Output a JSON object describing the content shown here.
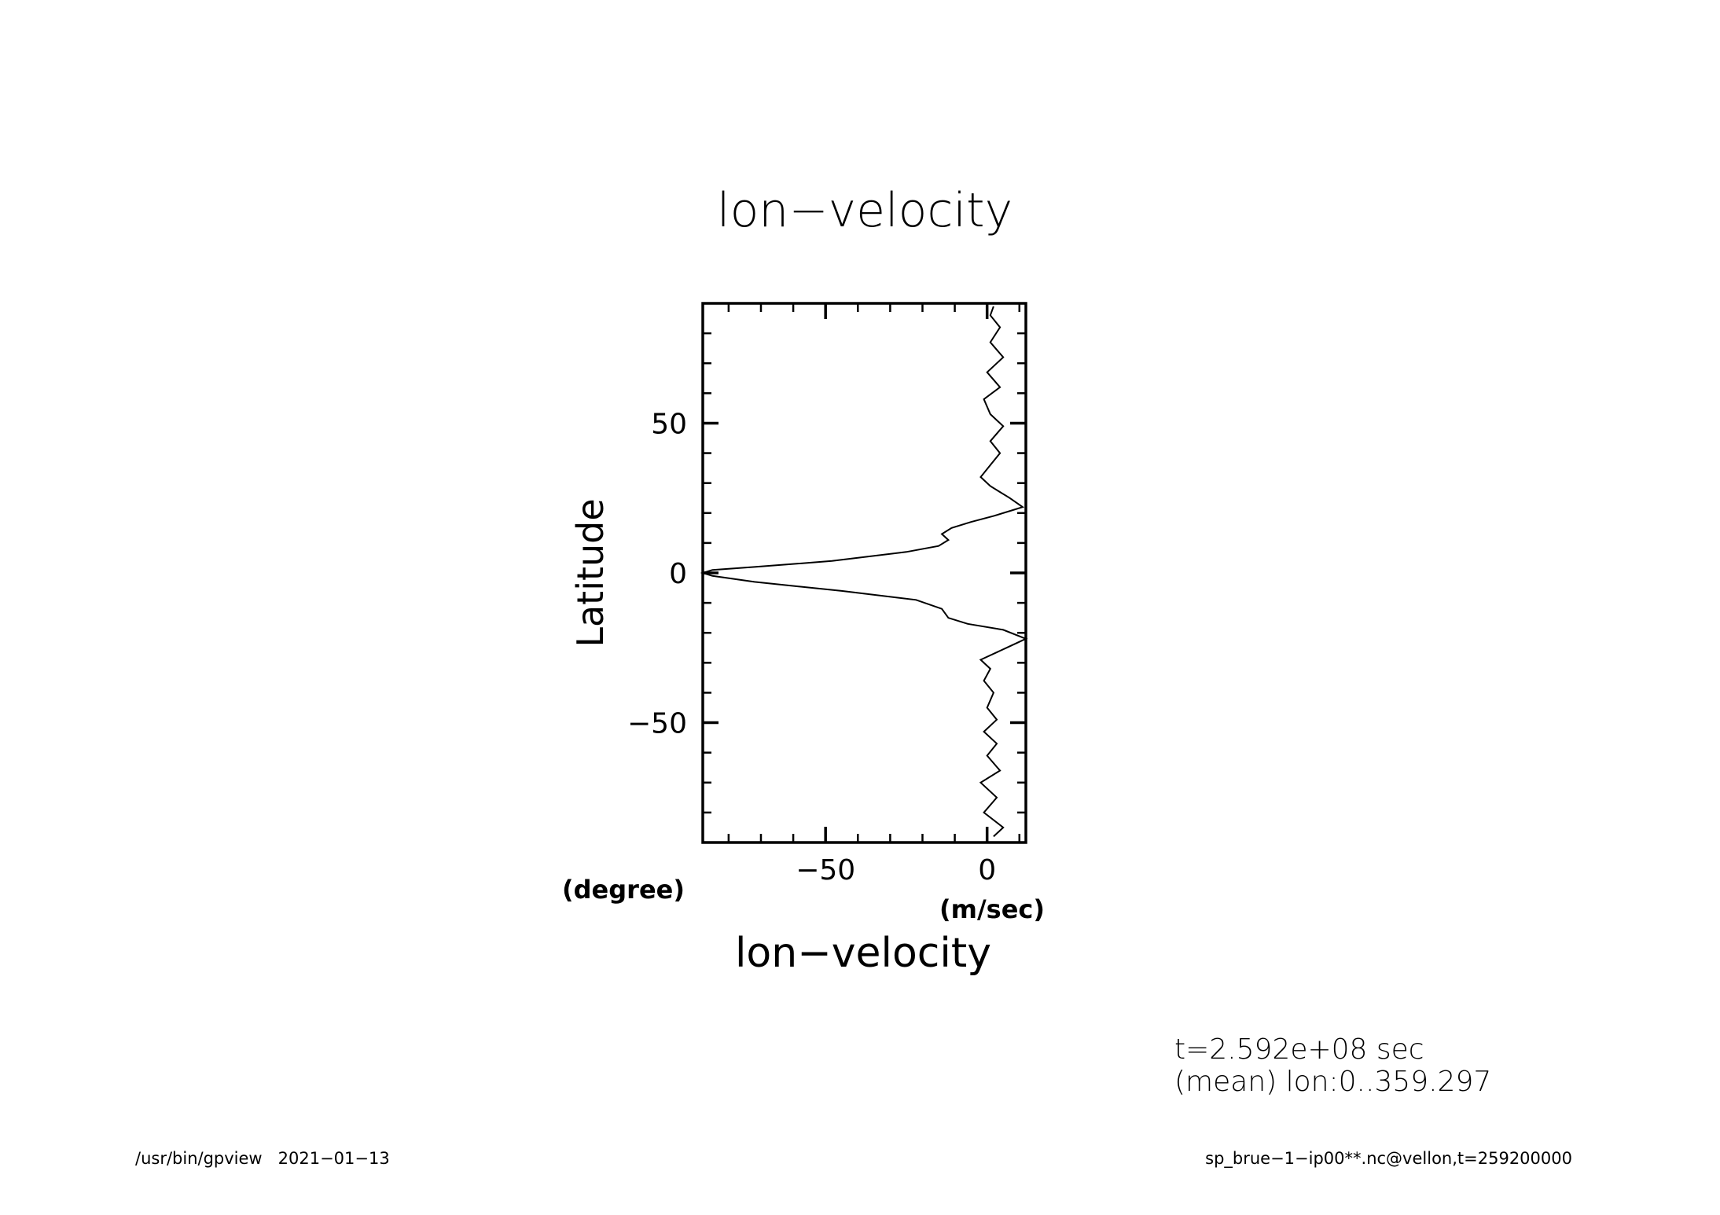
{
  "chart_data": {
    "type": "line",
    "orientation": "vertical",
    "title": "lon−velocity",
    "xlabel": "lon−velocity",
    "xunit": "(m/sec)",
    "ylabel": "Latitude",
    "yunit": "(degree)",
    "xlim": [
      -88,
      12
    ],
    "ylim": [
      -90,
      90
    ],
    "x_ticks": [
      -50,
      0
    ],
    "x_tick_labels": [
      "−50",
      "0"
    ],
    "y_ticks": [
      -50,
      0,
      50
    ],
    "y_tick_labels": [
      "−50",
      "0",
      "50"
    ],
    "grid": false,
    "series": [
      {
        "values": [
          {
            "x": 2,
            "y": -88
          },
          {
            "x": 5,
            "y": -85
          },
          {
            "x": -1,
            "y": -80
          },
          {
            "x": 3,
            "y": -75
          },
          {
            "x": -2,
            "y": -70
          },
          {
            "x": 4,
            "y": -66
          },
          {
            "x": 0,
            "y": -61
          },
          {
            "x": 3,
            "y": -57
          },
          {
            "x": -1,
            "y": -53
          },
          {
            "x": 3,
            "y": -49
          },
          {
            "x": 0,
            "y": -45
          },
          {
            "x": 2,
            "y": -40
          },
          {
            "x": -1,
            "y": -36
          },
          {
            "x": 1,
            "y": -32
          },
          {
            "x": -2,
            "y": -29
          },
          {
            "x": 6,
            "y": -25
          },
          {
            "x": 12,
            "y": -22
          },
          {
            "x": 5,
            "y": -19
          },
          {
            "x": -6,
            "y": -17
          },
          {
            "x": -12,
            "y": -15
          },
          {
            "x": -14,
            "y": -12
          },
          {
            "x": -22,
            "y": -9
          },
          {
            "x": -45,
            "y": -6
          },
          {
            "x": -72,
            "y": -3
          },
          {
            "x": -85,
            "y": -1
          },
          {
            "x": -88,
            "y": 0
          },
          {
            "x": -85,
            "y": 1
          },
          {
            "x": -72,
            "y": 2
          },
          {
            "x": -48,
            "y": 4
          },
          {
            "x": -25,
            "y": 7
          },
          {
            "x": -15,
            "y": 9
          },
          {
            "x": -12,
            "y": 11
          },
          {
            "x": -14,
            "y": 13
          },
          {
            "x": -11,
            "y": 15
          },
          {
            "x": -5,
            "y": 17
          },
          {
            "x": 2,
            "y": 19
          },
          {
            "x": 8,
            "y": 21
          },
          {
            "x": 11,
            "y": 22
          },
          {
            "x": 7,
            "y": 25
          },
          {
            "x": 1,
            "y": 29
          },
          {
            "x": -2,
            "y": 32
          },
          {
            "x": 1,
            "y": 36
          },
          {
            "x": 4,
            "y": 40
          },
          {
            "x": 1,
            "y": 44
          },
          {
            "x": 5,
            "y": 49
          },
          {
            "x": 1,
            "y": 53
          },
          {
            "x": -1,
            "y": 58
          },
          {
            "x": 4,
            "y": 62
          },
          {
            "x": 0,
            "y": 67
          },
          {
            "x": 5,
            "y": 72
          },
          {
            "x": 1,
            "y": 77
          },
          {
            "x": 4,
            "y": 82
          },
          {
            "x": 1,
            "y": 86
          },
          {
            "x": 2,
            "y": 89
          }
        ]
      }
    ]
  },
  "annotations": {
    "time": "t=2.592e+08 sec",
    "mean": "(mean) lon:0..359.297"
  },
  "footer": {
    "left": "/usr/bin/gpview   2021−01−13",
    "right": "sp_brue−1−ip00**.nc@vellon,t=259200000"
  }
}
